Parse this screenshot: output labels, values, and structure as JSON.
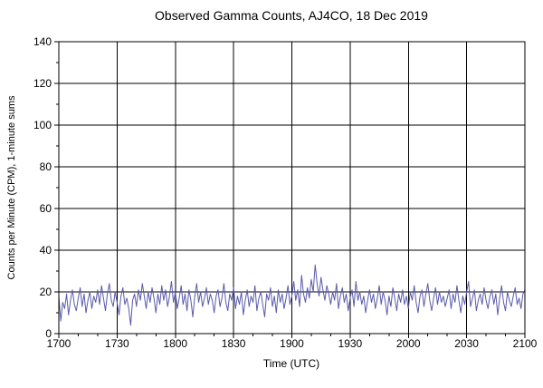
{
  "chart_data": {
    "type": "line",
    "title": "Observed Gamma Counts, AJ4CO, 18 Dec 2019",
    "xlabel": "Time (UTC)",
    "ylabel": "Counts per Minute (CPM), 1-minute sums",
    "x_ticks": [
      "1700",
      "1730",
      "1800",
      "1830",
      "1900",
      "1930",
      "2000",
      "2030",
      "2100"
    ],
    "y_ticks": [
      0,
      20,
      40,
      60,
      80,
      100,
      120,
      140
    ],
    "ylim": [
      0,
      140
    ],
    "grid": true,
    "legend": "none",
    "line_color": "#5a5aaa",
    "axis_color": "#000000",
    "background_color": "#ffffff",
    "x_step_minutes": 1,
    "values": [
      18,
      6,
      15,
      12,
      19,
      9,
      16,
      21,
      14,
      11,
      17,
      22,
      13,
      19,
      10,
      16,
      20,
      12,
      18,
      15,
      21,
      14,
      23,
      17,
      11,
      19,
      24,
      16,
      13,
      20,
      15,
      9,
      18,
      22,
      14,
      17,
      12,
      4,
      16,
      19,
      13,
      21,
      16,
      24,
      18,
      12,
      20,
      15,
      22,
      17,
      10,
      19,
      14,
      23,
      16,
      21,
      13,
      18,
      25,
      15,
      20,
      12,
      17,
      23,
      14,
      19,
      11,
      21,
      16,
      8,
      18,
      24,
      15,
      20,
      13,
      17,
      22,
      14,
      19,
      16,
      10,
      18,
      21,
      13,
      17,
      24,
      15,
      11,
      19,
      16,
      22,
      12,
      18,
      14,
      20,
      9,
      16,
      21,
      13,
      18,
      15,
      23,
      11,
      17,
      20,
      14,
      8,
      19,
      16,
      22,
      13,
      18,
      10,
      21,
      15,
      19,
      12,
      17,
      23,
      14,
      18,
      25,
      16,
      21,
      13,
      28,
      19,
      15,
      22,
      17,
      26,
      20,
      33,
      24,
      18,
      27,
      21,
      16,
      23,
      19,
      14,
      20,
      16,
      24,
      12,
      18,
      22,
      15,
      19,
      11,
      17,
      21,
      13,
      25,
      16,
      20,
      14,
      18,
      10,
      16,
      21,
      15,
      19,
      12,
      17,
      23,
      14,
      20,
      16,
      9,
      18,
      13,
      22,
      17,
      11,
      19,
      15,
      21,
      14,
      18,
      12,
      20,
      16,
      23,
      15,
      10,
      18,
      21,
      13,
      19,
      24,
      16,
      11,
      17,
      22,
      14,
      20,
      15,
      18,
      13,
      17,
      21,
      12,
      19,
      15,
      23,
      16,
      10,
      18,
      14,
      20,
      25,
      13,
      17,
      21,
      11,
      16,
      19,
      14,
      22,
      16,
      12,
      18,
      21,
      14,
      19,
      9,
      17,
      23,
      15,
      11,
      20,
      16,
      13,
      18,
      22,
      14,
      17,
      12,
      19,
      21
    ]
  }
}
